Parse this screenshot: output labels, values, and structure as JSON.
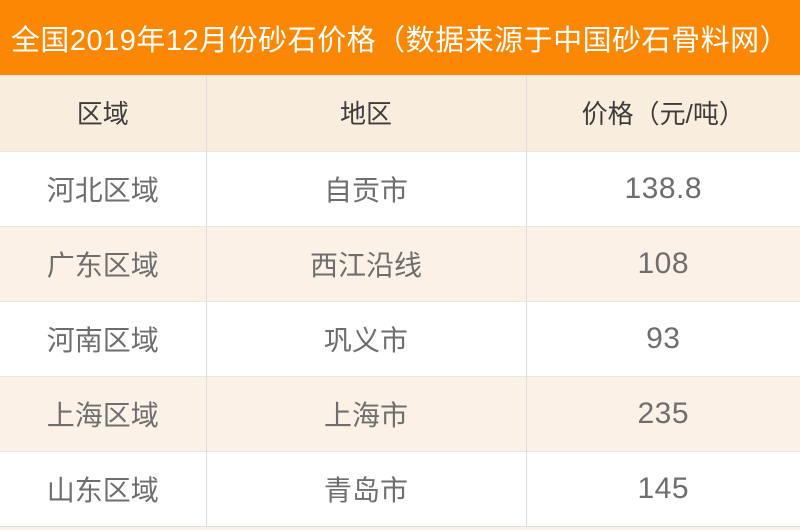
{
  "banner": {
    "title": "全国2019年12月份砂石价格（数据来源于中国砂石骨料网）",
    "background_color": "#fb8702",
    "text_color": "#ffffff"
  },
  "table": {
    "columns": [
      "区域",
      "地区",
      "价格（元/吨）"
    ],
    "header_background": "#f9edde",
    "alt_row_background": "#fcf1e6",
    "rows": [
      {
        "region": "河北区域",
        "area": "自贡市",
        "price": "138.8"
      },
      {
        "region": "广东区域",
        "area": "西江沿线",
        "price": "108"
      },
      {
        "region": "河南区域",
        "area": "巩义市",
        "price": "93"
      },
      {
        "region": "上海区域",
        "area": "上海市",
        "price": "235"
      },
      {
        "region": "山东区域",
        "area": "青岛市",
        "price": "145"
      }
    ]
  },
  "chart_data": {
    "type": "table",
    "title": "全国2019年12月份砂石价格（数据来源于中国砂石骨料网）",
    "columns": [
      "区域",
      "地区",
      "价格（元/吨）"
    ],
    "rows": [
      [
        "河北区域",
        "自贡市",
        138.8
      ],
      [
        "广东区域",
        "西江沿线",
        108
      ],
      [
        "河南区域",
        "巩义市",
        93
      ],
      [
        "上海区域",
        "上海市",
        235
      ],
      [
        "山东区域",
        "青岛市",
        145
      ]
    ],
    "unit": "元/吨",
    "layout": "header row on cream background, zebra-striped data rows (white / light cream), all cells center-aligned"
  }
}
